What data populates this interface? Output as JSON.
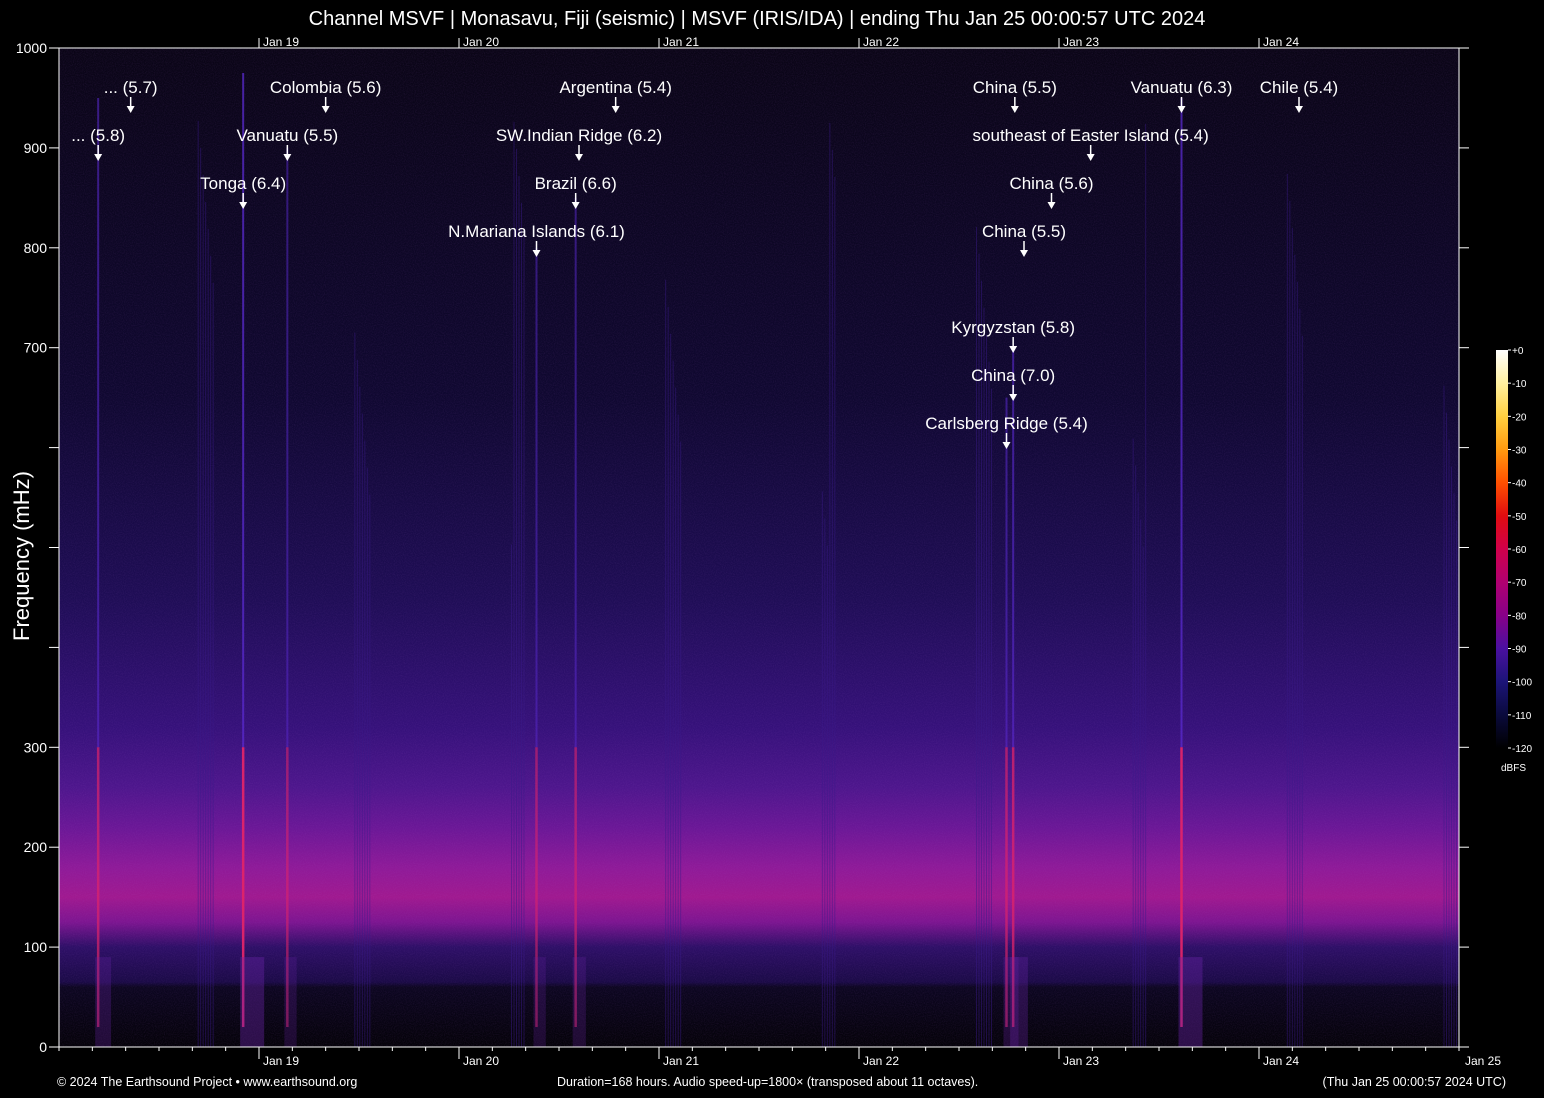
{
  "title": "Channel MSVF | Monasavu, Fiji (seismic) | MSVF (IRIS/IDA) | ending Thu Jan 25 00:00:57 UTC 2024",
  "footer": {
    "copyright": "© 2024 The Earthsound Project • www.earthsound.org",
    "duration": "Duration=168 hours. Audio speed-up=1800× (transposed about 11 octaves).",
    "timestamp": "(Thu Jan 25 00:00:57 2024 UTC)"
  },
  "colors": {
    "background": "#000000",
    "axis": "#ffffff",
    "noise_band": "#c0158f",
    "event_line": "#ff2b6b"
  },
  "chart_data": {
    "type": "heatmap",
    "title": "Channel MSVF | Monasavu, Fiji (seismic) | MSVF (IRIS/IDA) | ending Thu Jan 25 00:00:57 UTC 2024",
    "xlabel": "",
    "ylabel": "Frequency (mHz)",
    "x_unit": "hours before Thu Jan 25 00:00:57 UTC 2024",
    "xlim": [
      -168,
      0
    ],
    "ylim": [
      0,
      1000
    ],
    "x_ticks": [
      {
        "label": "Jan 19",
        "hours": -144
      },
      {
        "label": "Jan 20",
        "hours": -120
      },
      {
        "label": "Jan 21",
        "hours": -96
      },
      {
        "label": "Jan 22",
        "hours": -72
      },
      {
        "label": "Jan 23",
        "hours": -48
      },
      {
        "label": "Jan 24",
        "hours": -24
      }
    ],
    "x_end_label": "Jan 25",
    "y_ticks": [
      {
        "value": 0,
        "label": "0"
      },
      {
        "value": 100,
        "label": "100"
      },
      {
        "value": 200,
        "label": "200"
      },
      {
        "value": 300,
        "label": "300"
      },
      {
        "value": 400,
        "label": ""
      },
      {
        "value": 500,
        "label": ""
      },
      {
        "value": 600,
        "label": ""
      },
      {
        "value": 700,
        "label": "700"
      },
      {
        "value": 800,
        "label": "800"
      },
      {
        "value": 900,
        "label": "900"
      },
      {
        "value": 1000,
        "label": "1000"
      }
    ],
    "colorbar": {
      "label": "dBFS",
      "range": [
        -120,
        0
      ],
      "ticks": [
        "+0",
        "-10",
        "-20",
        "-30",
        "-40",
        "-50",
        "-60",
        "-70",
        "-80",
        "-90",
        "-100",
        "-110",
        "-120"
      ],
      "stops": [
        {
          "db": 0,
          "color": "#ffffff"
        },
        {
          "db": -10,
          "color": "#fff0a0"
        },
        {
          "db": -20,
          "color": "#ffd040"
        },
        {
          "db": -30,
          "color": "#ff9a10"
        },
        {
          "db": -40,
          "color": "#ff5000"
        },
        {
          "db": -50,
          "color": "#e00c10"
        },
        {
          "db": -60,
          "color": "#d0004a"
        },
        {
          "db": -70,
          "color": "#b00070"
        },
        {
          "db": -80,
          "color": "#880088"
        },
        {
          "db": -90,
          "color": "#4a10a0"
        },
        {
          "db": -100,
          "color": "#1c1478"
        },
        {
          "db": -110,
          "color": "#0a0a3c"
        },
        {
          "db": -120,
          "color": "#000000"
        }
      ]
    },
    "events": [
      {
        "label": "... (5.8)",
        "hours": -163.3,
        "level": 1
      },
      {
        "label": "... (5.7)",
        "hours": -159.4,
        "level": 0
      },
      {
        "label": "Tonga (6.4)",
        "hours": -145.9,
        "level": 2
      },
      {
        "label": "Vanuatu (5.5)",
        "hours": -140.6,
        "level": 1
      },
      {
        "label": "Colombia (5.6)",
        "hours": -136.0,
        "level": 0
      },
      {
        "label": "N.Mariana Islands (6.1)",
        "hours": -110.7,
        "level": 3
      },
      {
        "label": "Brazil (6.6)",
        "hours": -106.0,
        "level": 2
      },
      {
        "label": "SW.Indian Ridge (6.2)",
        "hours": -105.6,
        "level": 1
      },
      {
        "label": "Argentina (5.4)",
        "hours": -101.2,
        "level": 0
      },
      {
        "label": "Carlsberg Ridge (5.4)",
        "hours": -54.3,
        "level": 7
      },
      {
        "label": "China (7.0)",
        "hours": -53.5,
        "level": 6
      },
      {
        "label": "Kyrgyzstan (5.8)",
        "hours": -53.5,
        "level": 5
      },
      {
        "label": "China (5.5)",
        "hours": -53.3,
        "level": 0
      },
      {
        "label": "China (5.5)",
        "hours": -52.2,
        "level": 3
      },
      {
        "label": "China (5.6)",
        "hours": -48.9,
        "level": 2
      },
      {
        "label": "southeast of Easter Island (5.4)",
        "hours": -44.2,
        "level": 1
      },
      {
        "label": "Vanuatu (6.3)",
        "hours": -33.3,
        "level": 0
      },
      {
        "label": "Chile (5.4)",
        "hours": -19.2,
        "level": 0
      }
    ],
    "strong_signals": [
      {
        "hours": -163.3,
        "top_mHz": 950,
        "strength": 0.55
      },
      {
        "hours": -145.9,
        "top_mHz": 975,
        "strength": 1.0
      },
      {
        "hours": -140.6,
        "top_mHz": 900,
        "strength": 0.35
      },
      {
        "hours": -110.7,
        "top_mHz": 800,
        "strength": 0.35
      },
      {
        "hours": -106.0,
        "top_mHz": 850,
        "strength": 0.4
      },
      {
        "hours": -54.3,
        "top_mHz": 650,
        "strength": 0.5
      },
      {
        "hours": -53.5,
        "top_mHz": 700,
        "strength": 0.65
      },
      {
        "hours": -33.3,
        "top_mHz": 950,
        "strength": 1.0
      }
    ],
    "grid": false,
    "legend": "right"
  }
}
